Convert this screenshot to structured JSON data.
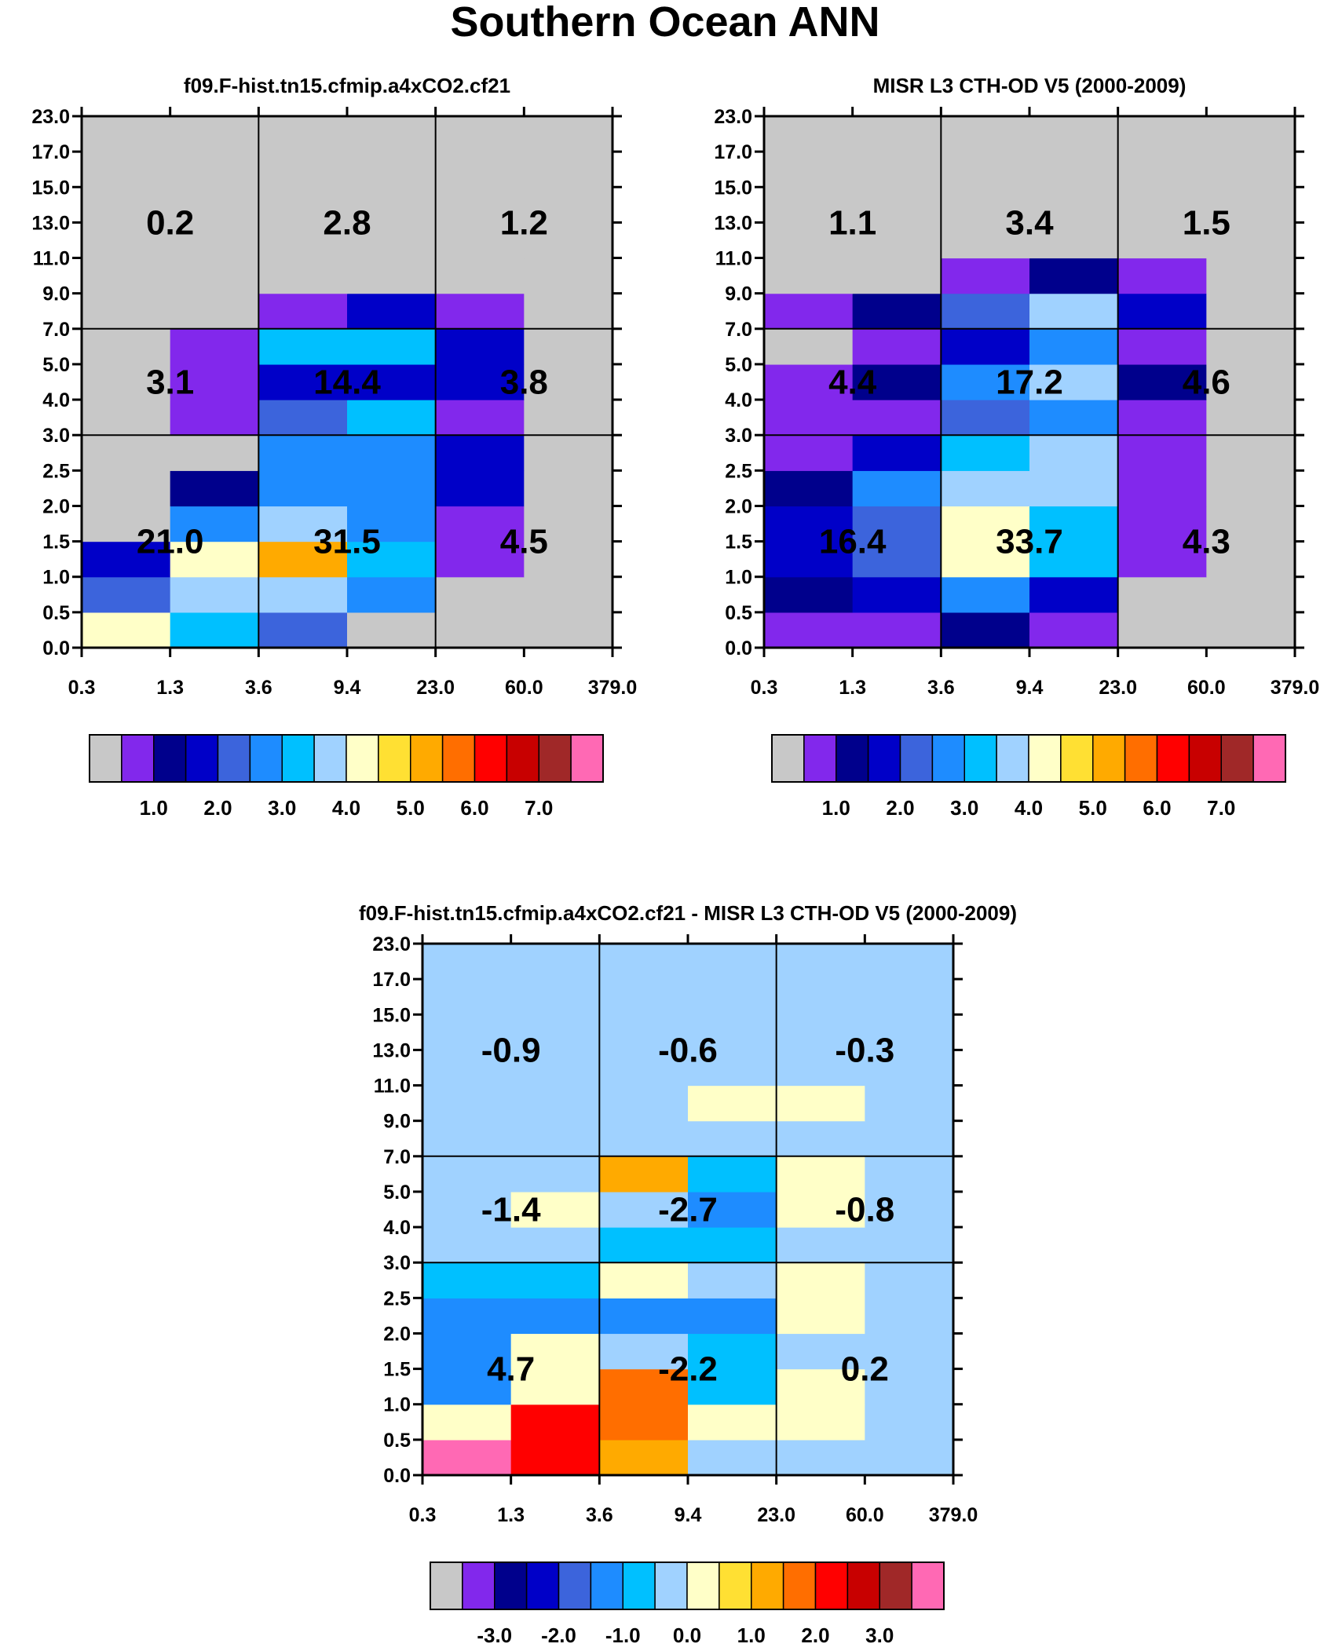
{
  "figure_title": "Southern Ocean ANN",
  "colors": {
    "palette": [
      "#c8c8c8",
      "#8228ec",
      "#00008c",
      "#0000c8",
      "#3c64dc",
      "#1e8cff",
      "#00c0ff",
      "#a0d2ff",
      "#ffffc8",
      "#ffe033",
      "#ffaa00",
      "#ff6e00",
      "#ff0000",
      "#c80000",
      "#a02828",
      "#ff69b4"
    ],
    "grid_line": "#000000"
  },
  "chart_data": [
    {
      "type": "heatmap",
      "name": "model",
      "title": "f09.F-hist.tn15.cfmip.a4xCO2.cf21",
      "x_ticks": [
        "0.3",
        "1.3",
        "3.6",
        "9.4",
        "23.0",
        "60.0",
        "379.0"
      ],
      "y_ticks": [
        "0.0",
        "0.5",
        "1.0",
        "1.5",
        "2.0",
        "2.5",
        "3.0",
        "4.0",
        "5.0",
        "7.0",
        "9.0",
        "11.0",
        "13.0",
        "15.0",
        "17.0",
        "23.0"
      ],
      "xlabel": "",
      "ylabel": "",
      "value_grid": [
        [
          4.0,
          3.0,
          2.0,
          0.0,
          0.0,
          0.0
        ],
        [
          2.0,
          3.5,
          3.5,
          2.5,
          0.0,
          0.0
        ],
        [
          1.5,
          4.0,
          5.0,
          3.0,
          0.5,
          0.0
        ],
        [
          0.0,
          2.5,
          3.5,
          2.5,
          0.5,
          0.0
        ],
        [
          0.0,
          1.0,
          2.5,
          2.5,
          1.5,
          0.0
        ],
        [
          0.0,
          0.0,
          2.5,
          2.5,
          1.5,
          0.0
        ],
        [
          0.0,
          0.5,
          2.0,
          3.0,
          0.5,
          0.0
        ],
        [
          0.0,
          0.5,
          1.5,
          1.5,
          1.5,
          0.0
        ],
        [
          0.0,
          0.5,
          3.0,
          3.0,
          1.5,
          0.0
        ],
        [
          0.0,
          0.0,
          0.5,
          1.5,
          0.5,
          0.0
        ],
        [
          0.0,
          0.0,
          0.0,
          0.0,
          0.0,
          0.0
        ],
        [
          0.0,
          0.0,
          0.0,
          0.0,
          0.0,
          0.0
        ],
        [
          0.0,
          0.0,
          0.0,
          0.0,
          0.0,
          0.0
        ],
        [
          0.0,
          0.0,
          0.0,
          0.0,
          0.0,
          0.0
        ],
        [
          0.0,
          0.0,
          0.0,
          0.0,
          0.0,
          0.0
        ]
      ],
      "block_labels": [
        {
          "row": 0,
          "col": 0,
          "text": "21.0"
        },
        {
          "row": 0,
          "col": 1,
          "text": "31.5"
        },
        {
          "row": 0,
          "col": 2,
          "text": "4.5"
        },
        {
          "row": 1,
          "col": 0,
          "text": "3.1"
        },
        {
          "row": 1,
          "col": 1,
          "text": "14.4"
        },
        {
          "row": 1,
          "col": 2,
          "text": "3.8"
        },
        {
          "row": 2,
          "col": 0,
          "text": "0.2"
        },
        {
          "row": 2,
          "col": 1,
          "text": "2.8"
        },
        {
          "row": 2,
          "col": 2,
          "text": "1.2"
        }
      ],
      "colorbar_labels": [
        "1.0",
        "2.0",
        "3.0",
        "4.0",
        "5.0",
        "6.0",
        "7.0"
      ],
      "levels": [
        0.25,
        0.75,
        1.25,
        1.75,
        2.25,
        2.75,
        3.25,
        3.75,
        4.25,
        4.75,
        5.25,
        5.75,
        6.25,
        6.75,
        7.25
      ]
    },
    {
      "type": "heatmap",
      "name": "obs",
      "title": "MISR L3 CTH-OD V5 (2000-2009)",
      "x_ticks": [
        "0.3",
        "1.3",
        "3.6",
        "9.4",
        "23.0",
        "60.0",
        "379.0"
      ],
      "y_ticks": [
        "0.0",
        "0.5",
        "1.0",
        "1.5",
        "2.0",
        "2.5",
        "3.0",
        "4.0",
        "5.0",
        "7.0",
        "9.0",
        "11.0",
        "13.0",
        "15.0",
        "17.0",
        "23.0"
      ],
      "xlabel": "",
      "ylabel": "",
      "value_grid": [
        [
          0.5,
          0.5,
          1.0,
          0.5,
          0.0,
          0.0
        ],
        [
          1.0,
          1.5,
          2.5,
          1.5,
          0.0,
          0.0
        ],
        [
          1.5,
          2.0,
          4.0,
          3.0,
          0.5,
          0.0
        ],
        [
          1.5,
          2.0,
          4.0,
          3.0,
          0.5,
          0.0
        ],
        [
          1.0,
          2.5,
          3.5,
          3.5,
          0.5,
          0.0
        ],
        [
          0.5,
          1.5,
          3.0,
          3.5,
          0.5,
          0.0
        ],
        [
          0.5,
          0.5,
          2.0,
          2.5,
          0.5,
          0.0
        ],
        [
          0.5,
          1.0,
          2.5,
          3.5,
          1.0,
          0.0
        ],
        [
          0.0,
          0.5,
          1.5,
          2.5,
          0.5,
          0.0
        ],
        [
          0.5,
          1.0,
          2.0,
          3.5,
          1.5,
          0.0
        ],
        [
          0.0,
          0.0,
          0.5,
          1.0,
          0.5,
          0.0
        ],
        [
          0.0,
          0.0,
          0.0,
          0.0,
          0.0,
          0.0
        ],
        [
          0.0,
          0.0,
          0.0,
          0.0,
          0.0,
          0.0
        ],
        [
          0.0,
          0.0,
          0.0,
          0.0,
          0.0,
          0.0
        ],
        [
          0.0,
          0.0,
          0.0,
          0.0,
          0.0,
          0.0
        ]
      ],
      "block_labels": [
        {
          "row": 0,
          "col": 0,
          "text": "16.4"
        },
        {
          "row": 0,
          "col": 1,
          "text": "33.7"
        },
        {
          "row": 0,
          "col": 2,
          "text": "4.3"
        },
        {
          "row": 1,
          "col": 0,
          "text": "4.4"
        },
        {
          "row": 1,
          "col": 1,
          "text": "17.2"
        },
        {
          "row": 1,
          "col": 2,
          "text": "4.6"
        },
        {
          "row": 2,
          "col": 0,
          "text": "1.1"
        },
        {
          "row": 2,
          "col": 1,
          "text": "3.4"
        },
        {
          "row": 2,
          "col": 2,
          "text": "1.5"
        }
      ],
      "colorbar_labels": [
        "1.0",
        "2.0",
        "3.0",
        "4.0",
        "5.0",
        "6.0",
        "7.0"
      ],
      "levels": [
        0.25,
        0.75,
        1.25,
        1.75,
        2.25,
        2.75,
        3.25,
        3.75,
        4.25,
        4.75,
        5.25,
        5.75,
        6.25,
        6.75,
        7.25
      ]
    },
    {
      "type": "heatmap",
      "name": "diff",
      "title": "f09.F-hist.tn15.cfmip.a4xCO2.cf21 - MISR L3 CTH-OD V5 (2000-2009)",
      "x_ticks": [
        "0.3",
        "1.3",
        "3.6",
        "9.4",
        "23.0",
        "60.0",
        "379.0"
      ],
      "y_ticks": [
        "0.0",
        "0.5",
        "1.0",
        "1.5",
        "2.0",
        "2.5",
        "3.0",
        "4.0",
        "5.0",
        "7.0",
        "9.0",
        "11.0",
        "13.0",
        "15.0",
        "17.0",
        "23.0"
      ],
      "xlabel": "",
      "ylabel": "",
      "value_grid": [
        [
          3.5,
          2.0,
          0.75,
          -0.25,
          -0.25,
          -0.25
        ],
        [
          0.25,
          2.0,
          1.25,
          0.25,
          0.25,
          -0.25
        ],
        [
          -1.0,
          0.25,
          1.25,
          -0.75,
          0.25,
          -0.25
        ],
        [
          -1.0,
          0.25,
          -0.25,
          -0.75,
          -0.25,
          -0.25
        ],
        [
          -1.0,
          -1.0,
          -1.25,
          -1.0,
          0.25,
          -0.25
        ],
        [
          -0.75,
          -0.75,
          0.25,
          -0.25,
          0.25,
          -0.25
        ],
        [
          -0.25,
          -0.25,
          -0.75,
          -0.75,
          -0.25,
          -0.25
        ],
        [
          -0.25,
          0.25,
          -0.25,
          -1.25,
          0.25,
          -0.25
        ],
        [
          -0.25,
          -0.25,
          0.75,
          -0.75,
          0.25,
          -0.25
        ],
        [
          -0.25,
          -0.25,
          -0.25,
          -0.25,
          -0.25,
          -0.25
        ],
        [
          -0.25,
          -0.25,
          -0.25,
          0.25,
          0.25,
          -0.25
        ],
        [
          -0.25,
          -0.25,
          -0.25,
          -0.25,
          -0.25,
          -0.25
        ],
        [
          -0.25,
          -0.25,
          -0.25,
          -0.25,
          -0.25,
          -0.25
        ],
        [
          -0.25,
          -0.25,
          -0.25,
          -0.25,
          -0.25,
          -0.25
        ],
        [
          -0.25,
          -0.25,
          -0.25,
          -0.25,
          -0.25,
          -0.25
        ]
      ],
      "block_labels": [
        {
          "row": 0,
          "col": 0,
          "text": "4.7"
        },
        {
          "row": 0,
          "col": 1,
          "text": "-2.2"
        },
        {
          "row": 0,
          "col": 2,
          "text": "0.2"
        },
        {
          "row": 1,
          "col": 0,
          "text": "-1.4"
        },
        {
          "row": 1,
          "col": 1,
          "text": "-2.7"
        },
        {
          "row": 1,
          "col": 2,
          "text": "-0.8"
        },
        {
          "row": 2,
          "col": 0,
          "text": "-0.9"
        },
        {
          "row": 2,
          "col": 1,
          "text": "-0.6"
        },
        {
          "row": 2,
          "col": 2,
          "text": "-0.3"
        }
      ],
      "colorbar_labels": [
        "-3.0",
        "-2.0",
        "-1.0",
        "0.0",
        "1.0",
        "2.0",
        "3.0"
      ],
      "levels": [
        -3.25,
        -2.75,
        -2.25,
        -1.75,
        -1.25,
        -0.75,
        -0.5,
        0.0,
        0.5,
        0.75,
        1.25,
        1.75,
        2.25,
        2.75,
        3.25
      ]
    }
  ]
}
